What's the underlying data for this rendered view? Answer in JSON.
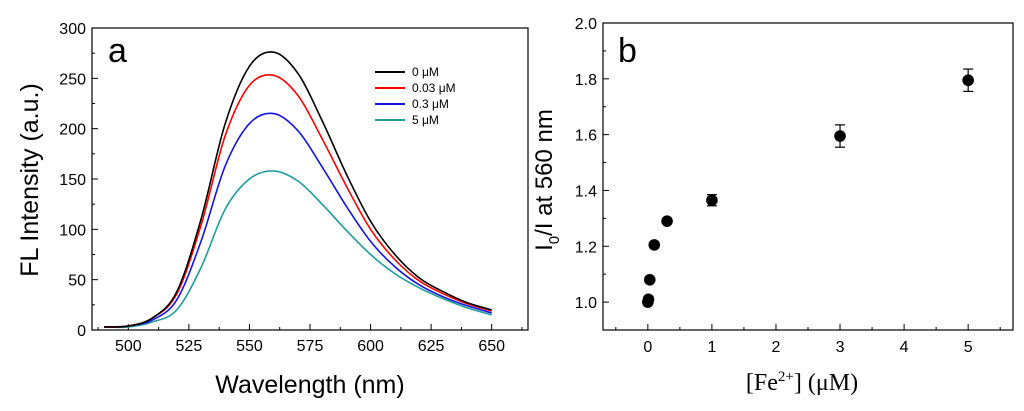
{
  "chart_data": [
    {
      "type": "line",
      "panel_label": "a",
      "xlabel": "Wavelength (nm)",
      "ylabel": "FL Intensity (a.u.)",
      "xlim": [
        485,
        665
      ],
      "ylim": [
        0,
        300
      ],
      "xticks": [
        "500",
        "525",
        "550",
        "575",
        "600",
        "625",
        "650"
      ],
      "yticks": [
        "0",
        "50",
        "100",
        "150",
        "200",
        "250",
        "300"
      ],
      "legend_position": "top-right",
      "x": [
        490,
        500,
        510,
        520,
        530,
        540,
        550,
        560,
        570,
        580,
        590,
        600,
        610,
        620,
        630,
        640,
        650
      ],
      "series": [
        {
          "name": "0 μM",
          "color": "#000000",
          "values": [
            3,
            4,
            12,
            38,
            110,
            205,
            262,
            276,
            255,
            208,
            155,
            108,
            75,
            52,
            38,
            27,
            20
          ]
        },
        {
          "name": "0.03 μM",
          "color": "#ff0000",
          "values": [
            3,
            4,
            12,
            36,
            104,
            193,
            243,
            253,
            233,
            190,
            143,
            100,
            70,
            49,
            36,
            26,
            19
          ]
        },
        {
          "name": "0.3 μM",
          "color": "#1515e0",
          "values": [
            3,
            4,
            10,
            30,
            88,
            163,
            205,
            215,
            198,
            162,
            123,
            88,
            63,
            45,
            33,
            24,
            17
          ]
        },
        {
          "name": "5 μM",
          "color": "#1f9b9b",
          "values": [
            3,
            3,
            8,
            20,
            62,
            120,
            150,
            158,
            148,
            125,
            99,
            75,
            56,
            42,
            31,
            22,
            15
          ]
        }
      ]
    },
    {
      "type": "scatter",
      "panel_label": "b",
      "xlabel_prefix": "[Fe",
      "xlabel_sup": "2+",
      "xlabel_suffix": "] (μM)",
      "ylabel_main": "I",
      "ylabel_sub": "0",
      "ylabel_rest": "/I at 560 nm",
      "xlim": [
        -0.7,
        5.7
      ],
      "ylim": [
        0.9,
        2.0
      ],
      "xticks": [
        "0",
        "1",
        "2",
        "3",
        "4",
        "5"
      ],
      "yticks": [
        "1.0",
        "1.2",
        "1.4",
        "1.6",
        "1.8",
        "2.0"
      ],
      "points": [
        {
          "x": 0.0,
          "y": 1.0,
          "err": 0.0
        },
        {
          "x": 0.01,
          "y": 1.01,
          "err": 0.0
        },
        {
          "x": 0.03,
          "y": 1.08,
          "err": 0.0
        },
        {
          "x": 0.1,
          "y": 1.205,
          "err": 0.0
        },
        {
          "x": 0.3,
          "y": 1.29,
          "err": 0.0
        },
        {
          "x": 1.0,
          "y": 1.365,
          "err": 0.02
        },
        {
          "x": 3.0,
          "y": 1.595,
          "err": 0.04
        },
        {
          "x": 5.0,
          "y": 1.795,
          "err": 0.04
        }
      ]
    }
  ]
}
